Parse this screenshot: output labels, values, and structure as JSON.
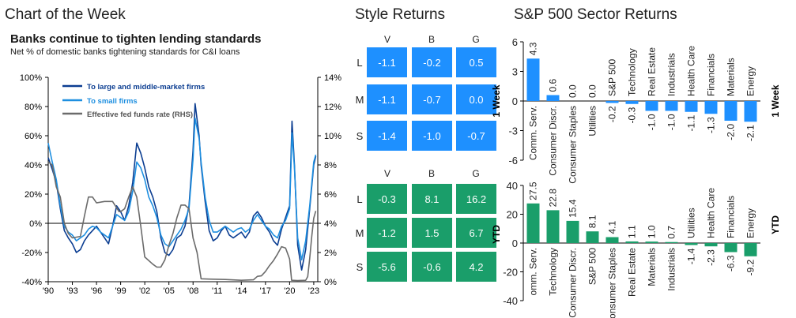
{
  "headers": {
    "chart_of_week": "Chart of the Week",
    "style_returns": "Style Returns",
    "sector_returns": "S&P 500 Sector Returns"
  },
  "chart_data": [
    {
      "id": "banks",
      "type": "line",
      "title": "Banks continue to tighten lending standards",
      "subtitle": "Net % of domestic banks tightening standards for C&I loans",
      "x_ticks": [
        "'90",
        "'93",
        "'96",
        "'99",
        "'02",
        "'05",
        "'08",
        "'11",
        "'14",
        "'17",
        "'20",
        "'23"
      ],
      "xlim": [
        1990,
        2023.5
      ],
      "y_left_ticks": [
        "100%",
        "80%",
        "60%",
        "40%",
        "20%",
        "0%",
        "-20%",
        "-40%"
      ],
      "ylim_left": [
        -40,
        100
      ],
      "y_right_ticks": [
        "14%",
        "12%",
        "10%",
        "8%",
        "6%",
        "4%",
        "2%",
        "0%"
      ],
      "ylim_right": [
        0,
        14
      ],
      "legend_position": "top-left",
      "colors": {
        "large": "#0b3d91",
        "small": "#1e8fe0",
        "fed": "#6b6b6b"
      },
      "series": [
        {
          "name": "To large and middle-market firms",
          "axis": "left",
          "points": [
            [
              1990.0,
              45
            ],
            [
              1990.5,
              37
            ],
            [
              1991.0,
              28
            ],
            [
              1991.5,
              10
            ],
            [
              1992.0,
              -5
            ],
            [
              1992.5,
              -10
            ],
            [
              1993.0,
              -14
            ],
            [
              1993.5,
              -20
            ],
            [
              1994.0,
              -18
            ],
            [
              1994.5,
              -12
            ],
            [
              1995.0,
              -8
            ],
            [
              1995.5,
              -5
            ],
            [
              1996.0,
              -2
            ],
            [
              1996.5,
              -6
            ],
            [
              1997.0,
              -10
            ],
            [
              1997.5,
              -14
            ],
            [
              1998.0,
              -2
            ],
            [
              1998.5,
              12
            ],
            [
              1999.0,
              8
            ],
            [
              1999.5,
              2
            ],
            [
              2000.0,
              12
            ],
            [
              2000.5,
              28
            ],
            [
              2001.0,
              55
            ],
            [
              2001.5,
              48
            ],
            [
              2002.0,
              38
            ],
            [
              2002.5,
              25
            ],
            [
              2003.0,
              18
            ],
            [
              2003.5,
              8
            ],
            [
              2004.0,
              -10
            ],
            [
              2004.5,
              -20
            ],
            [
              2005.0,
              -22
            ],
            [
              2005.5,
              -18
            ],
            [
              2006.0,
              -10
            ],
            [
              2006.5,
              -8
            ],
            [
              2007.0,
              -2
            ],
            [
              2007.5,
              12
            ],
            [
              2008.0,
              50
            ],
            [
              2008.25,
              82
            ],
            [
              2008.75,
              60
            ],
            [
              2009.0,
              40
            ],
            [
              2009.5,
              15
            ],
            [
              2010.0,
              -5
            ],
            [
              2010.5,
              -12
            ],
            [
              2011.0,
              -10
            ],
            [
              2011.5,
              -5
            ],
            [
              2012.0,
              -2
            ],
            [
              2012.5,
              -8
            ],
            [
              2013.0,
              -10
            ],
            [
              2013.5,
              -8
            ],
            [
              2014.0,
              -6
            ],
            [
              2014.5,
              -10
            ],
            [
              2015.0,
              -6
            ],
            [
              2015.5,
              5
            ],
            [
              2016.0,
              8
            ],
            [
              2016.5,
              4
            ],
            [
              2017.0,
              -2
            ],
            [
              2017.5,
              -6
            ],
            [
              2018.0,
              -12
            ],
            [
              2018.5,
              -15
            ],
            [
              2019.0,
              -4
            ],
            [
              2019.5,
              4
            ],
            [
              2020.0,
              12
            ],
            [
              2020.3,
              70
            ],
            [
              2020.6,
              40
            ],
            [
              2021.0,
              -15
            ],
            [
              2021.5,
              -32
            ],
            [
              2022.0,
              -18
            ],
            [
              2022.5,
              10
            ],
            [
              2023.0,
              40
            ],
            [
              2023.25,
              46
            ]
          ]
        },
        {
          "name": "To small firms",
          "axis": "left",
          "points": [
            [
              1990.0,
              55
            ],
            [
              1990.5,
              42
            ],
            [
              1991.0,
              30
            ],
            [
              1991.5,
              12
            ],
            [
              1992.0,
              -2
            ],
            [
              1992.5,
              -6
            ],
            [
              1993.0,
              -8
            ],
            [
              1993.5,
              -12
            ],
            [
              1994.0,
              -10
            ],
            [
              1994.5,
              -8
            ],
            [
              1995.0,
              -4
            ],
            [
              1995.5,
              -2
            ],
            [
              1996.0,
              -3
            ],
            [
              1996.5,
              -6
            ],
            [
              1997.0,
              -8
            ],
            [
              1997.5,
              -10
            ],
            [
              1998.0,
              -2
            ],
            [
              1998.5,
              6
            ],
            [
              1999.0,
              4
            ],
            [
              1999.5,
              2
            ],
            [
              2000.0,
              8
            ],
            [
              2000.5,
              22
            ],
            [
              2001.0,
              42
            ],
            [
              2001.5,
              38
            ],
            [
              2002.0,
              30
            ],
            [
              2002.5,
              18
            ],
            [
              2003.0,
              12
            ],
            [
              2003.5,
              4
            ],
            [
              2004.0,
              -8
            ],
            [
              2004.5,
              -14
            ],
            [
              2005.0,
              -16
            ],
            [
              2005.5,
              -12
            ],
            [
              2006.0,
              -8
            ],
            [
              2006.5,
              -4
            ],
            [
              2007.0,
              2
            ],
            [
              2007.5,
              10
            ],
            [
              2008.0,
              44
            ],
            [
              2008.25,
              72
            ],
            [
              2008.75,
              58
            ],
            [
              2009.0,
              42
            ],
            [
              2009.5,
              18
            ],
            [
              2010.0,
              2
            ],
            [
              2010.5,
              -6
            ],
            [
              2011.0,
              -6
            ],
            [
              2011.5,
              -4
            ],
            [
              2012.0,
              -2
            ],
            [
              2012.5,
              -4
            ],
            [
              2013.0,
              -6
            ],
            [
              2013.5,
              -4
            ],
            [
              2014.0,
              -3
            ],
            [
              2014.5,
              -6
            ],
            [
              2015.0,
              -4
            ],
            [
              2015.5,
              2
            ],
            [
              2016.0,
              6
            ],
            [
              2016.5,
              2
            ],
            [
              2017.0,
              -2
            ],
            [
              2017.5,
              -4
            ],
            [
              2018.0,
              -8
            ],
            [
              2018.5,
              -10
            ],
            [
              2019.0,
              -2
            ],
            [
              2019.5,
              2
            ],
            [
              2020.0,
              10
            ],
            [
              2020.3,
              62
            ],
            [
              2020.6,
              38
            ],
            [
              2021.0,
              -10
            ],
            [
              2021.5,
              -25
            ],
            [
              2022.0,
              -12
            ],
            [
              2022.5,
              12
            ],
            [
              2023.0,
              42
            ],
            [
              2023.25,
              47
            ]
          ]
        },
        {
          "name": "Effective fed funds rate (RHS)",
          "axis": "right",
          "points": [
            [
              1990.0,
              8.2
            ],
            [
              1990.5,
              8.0
            ],
            [
              1991.0,
              6.5
            ],
            [
              1991.5,
              5.8
            ],
            [
              1992.0,
              4.0
            ],
            [
              1992.5,
              3.3
            ],
            [
              1993.0,
              3.0
            ],
            [
              1994.0,
              3.1
            ],
            [
              1994.5,
              4.5
            ],
            [
              1995.0,
              5.8
            ],
            [
              1995.5,
              5.8
            ],
            [
              1996.0,
              5.4
            ],
            [
              1997.0,
              5.5
            ],
            [
              1998.0,
              5.5
            ],
            [
              1998.8,
              4.8
            ],
            [
              1999.0,
              4.8
            ],
            [
              1999.5,
              5.0
            ],
            [
              2000.0,
              5.8
            ],
            [
              2000.5,
              6.5
            ],
            [
              2001.0,
              5.8
            ],
            [
              2001.5,
              3.8
            ],
            [
              2002.0,
              1.7
            ],
            [
              2003.0,
              1.2
            ],
            [
              2003.5,
              1.0
            ],
            [
              2004.0,
              1.0
            ],
            [
              2004.5,
              1.5
            ],
            [
              2005.0,
              2.5
            ],
            [
              2005.5,
              3.3
            ],
            [
              2006.0,
              4.4
            ],
            [
              2006.5,
              5.25
            ],
            [
              2007.0,
              5.25
            ],
            [
              2007.5,
              5.0
            ],
            [
              2008.0,
              3.0
            ],
            [
              2008.5,
              2.0
            ],
            [
              2009.0,
              0.2
            ],
            [
              2010.0,
              0.18
            ],
            [
              2012.0,
              0.15
            ],
            [
              2014.0,
              0.1
            ],
            [
              2015.5,
              0.13
            ],
            [
              2016.0,
              0.37
            ],
            [
              2016.5,
              0.4
            ],
            [
              2017.0,
              0.7
            ],
            [
              2017.5,
              1.1
            ],
            [
              2018.0,
              1.45
            ],
            [
              2018.5,
              1.9
            ],
            [
              2019.0,
              2.4
            ],
            [
              2019.5,
              2.3
            ],
            [
              2020.0,
              1.55
            ],
            [
              2020.25,
              0.1
            ],
            [
              2021.0,
              0.08
            ],
            [
              2022.0,
              0.1
            ],
            [
              2022.25,
              0.35
            ],
            [
              2022.5,
              1.6
            ],
            [
              2022.75,
              3.1
            ],
            [
              2023.0,
              4.35
            ],
            [
              2023.25,
              4.85
            ]
          ]
        }
      ]
    },
    {
      "id": "style",
      "type": "table",
      "title": "Style Returns",
      "columns": [
        "V",
        "B",
        "G"
      ],
      "rows": [
        "L",
        "M",
        "S"
      ],
      "panels": [
        {
          "label": "1 Week",
          "color": "#1e90ff",
          "values": [
            [
              "-1.1",
              "-0.2",
              "0.5"
            ],
            [
              "-1.1",
              "-0.7",
              "0.0"
            ],
            [
              "-1.4",
              "-1.0",
              "-0.7"
            ]
          ]
        },
        {
          "label": "YTD",
          "color": "#1a9e6a",
          "values": [
            [
              "-0.3",
              "8.1",
              "16.2"
            ],
            [
              "-1.2",
              "1.5",
              "6.7"
            ],
            [
              "-5.6",
              "-0.6",
              "4.2"
            ]
          ]
        }
      ]
    },
    {
      "id": "sector_week",
      "type": "bar",
      "title": "S&P 500 Sector Returns",
      "panel_label": "1 Week",
      "color": "#1e90ff",
      "ylim": [
        -6,
        6
      ],
      "y_ticks": [
        "6",
        "3",
        "0",
        "-3",
        "-6"
      ],
      "categories": [
        "Comm. Serv.",
        "Consumer Discr.",
        "Consumer Staples",
        "Utilities",
        "S&P 500",
        "Technology",
        "Real Estate",
        "Industrials",
        "Health Care",
        "Financials",
        "Materials",
        "Energy"
      ],
      "values": [
        4.3,
        0.6,
        0.0,
        0.0,
        -0.2,
        -0.3,
        -1.0,
        -1.0,
        -1.1,
        -1.3,
        -2.0,
        -2.1
      ],
      "value_labels": [
        "4.3",
        "0.6",
        "0.0",
        "0.0",
        "-0.2",
        "-0.3",
        "-1.0",
        "-1.0",
        "-1.1",
        "-1.3",
        "-2.0",
        "-2.1"
      ]
    },
    {
      "id": "sector_ytd",
      "type": "bar",
      "panel_label": "YTD",
      "color": "#1a9e6a",
      "ylim": [
        -40,
        40
      ],
      "y_ticks": [
        "40",
        "20",
        "0",
        "-20",
        "-40"
      ],
      "categories": [
        "omm. Serv.",
        "Technology",
        "Consumer Discr.",
        "S&P 500",
        "Consumer Staples",
        "Real Estate",
        "Materials",
        "Industrials",
        "Utilities",
        "Health Care",
        "Financials",
        "Energy"
      ],
      "values": [
        27.5,
        22.8,
        15.4,
        8.1,
        4.1,
        1.1,
        1.0,
        0.7,
        -1.4,
        -2.3,
        -6.3,
        -9.2
      ],
      "value_labels": [
        "27.5",
        "22.8",
        "15.4",
        "8.1",
        "4.1",
        "1.1",
        "1.0",
        "0.7",
        "-1.4",
        "-2.3",
        "-6.3",
        "-9.2"
      ]
    }
  ]
}
